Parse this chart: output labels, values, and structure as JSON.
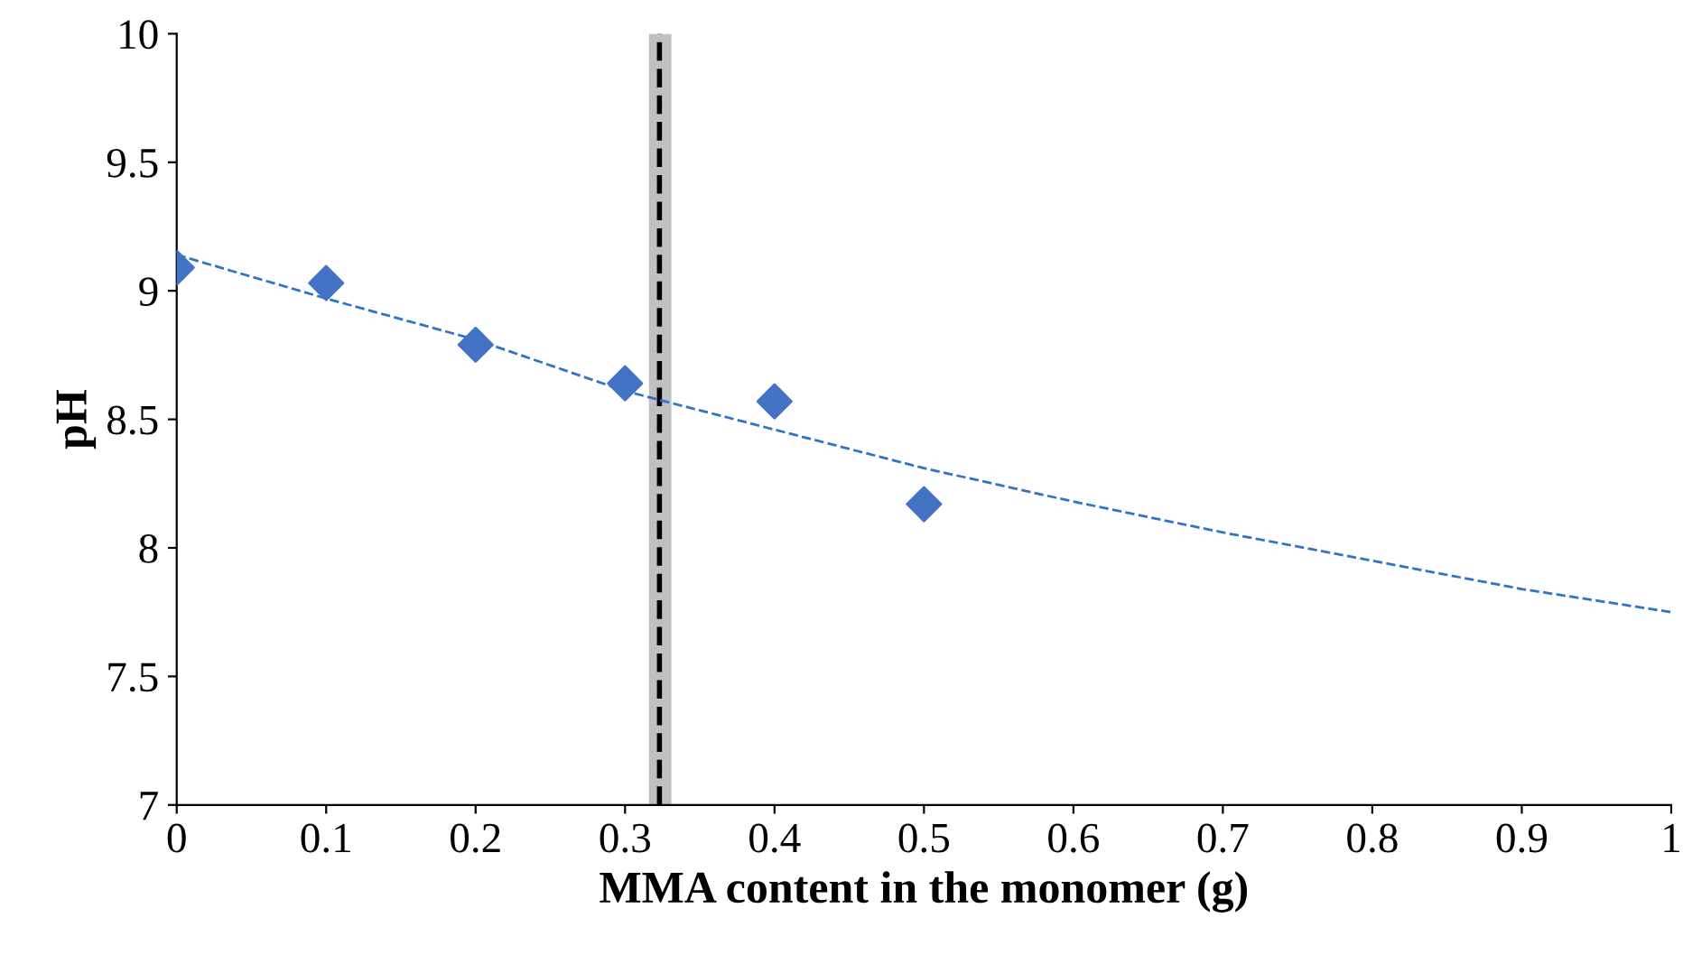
{
  "chart_data": {
    "type": "scatter",
    "xlabel": "MMA content in the monomer (g)",
    "ylabel": "pH",
    "xlim": [
      0,
      1
    ],
    "xticks": [
      0,
      0.1,
      0.2,
      0.3,
      0.4,
      0.5,
      0.6,
      0.7,
      0.8,
      0.9,
      1
    ],
    "ylim": [
      7,
      10
    ],
    "yticks": [
      7,
      7.5,
      8,
      8.5,
      9,
      9.5,
      10
    ],
    "grid": false,
    "legend": false,
    "series": [
      {
        "color": "#4472c4",
        "marker": "diamond",
        "x": [
          0,
          0.1,
          0.2,
          0.3,
          0.4,
          0.5
        ],
        "values": [
          9.09,
          9.03,
          8.79,
          8.64,
          8.57,
          8.17
        ]
      },
      {
        "type": "line",
        "color": "#2e75c6",
        "line_style": "dashed",
        "marker": "none",
        "x": [
          0,
          0.1,
          0.2,
          0.3,
          0.4,
          0.5,
          0.6,
          0.7,
          0.8,
          0.9,
          1
        ],
        "values": [
          9.14,
          8.97,
          8.81,
          8.61,
          8.46,
          8.31,
          8.18,
          8.06,
          7.95,
          7.84,
          7.75
        ]
      }
    ],
    "bands": [
      {
        "axis": "x",
        "from": 0.316,
        "to": 0.331,
        "color": "#c0c0c0"
      }
    ],
    "ref_lines": [
      {
        "axis": "x",
        "value": 0.323,
        "color": "#000000",
        "line_style": "dashed"
      }
    ]
  }
}
